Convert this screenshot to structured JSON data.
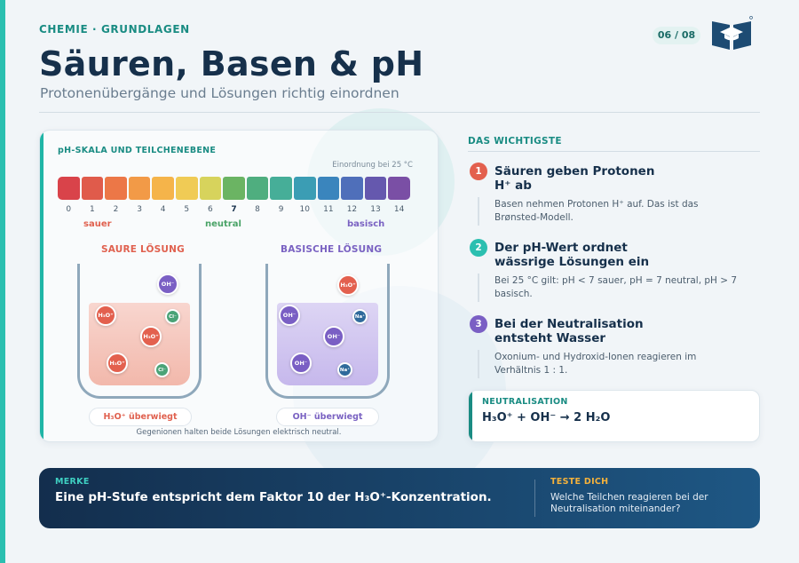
{
  "header": {
    "eyebrow": "CHEMIE · GRUNDLAGEN",
    "page": "06 / 08",
    "title": "Säuren, Basen & pH",
    "subtitle": "Protonenübergänge und Lösungen richtig einordnen",
    "logo_icon": "book-graduation-cap-icon"
  },
  "ph_panel": {
    "title": "pH-SKALA UND TEILCHENEBENE",
    "note": "Einordnung bei 25 °C",
    "scale_colors": [
      "#d9434a",
      "#e05b4b",
      "#ec7747",
      "#f29a47",
      "#f5b44a",
      "#f0cb55",
      "#d7d35c",
      "#6bb463",
      "#4fae7f",
      "#46ae98",
      "#3b9db4",
      "#3a85bd",
      "#4f6fba",
      "#6558ae",
      "#7a4fa5"
    ],
    "numbers": [
      "0",
      "1",
      "2",
      "3",
      "4",
      "5",
      "6",
      "7",
      "8",
      "9",
      "10",
      "11",
      "12",
      "13",
      "14"
    ],
    "label_acid": "sauer",
    "label_neutral": "neutral",
    "label_base": "basisch",
    "acid_title": "SAURE LÖSUNG",
    "base_title": "BASISCHE LÖSUNG",
    "ion_h3o": "H₃O⁺",
    "ion_oh": "OH⁻",
    "ion_cl": "Cl⁻",
    "ion_na": "Na⁺",
    "acid_pill": "H₃O⁺ überwiegt",
    "base_pill": "OH⁻ überwiegt",
    "footnote": "Gegenionen halten beide Lösungen elektrisch neutral."
  },
  "key_points": {
    "heading": "DAS WICHTIGSTE",
    "items": [
      {
        "num": "1",
        "title": "Säuren geben Protonen H⁺ ab",
        "text": "Basen nehmen Protonen H⁺ auf. Das ist das Brønsted-Modell.",
        "color": "#e3604e"
      },
      {
        "num": "2",
        "title": "Der pH-Wert ordnet wässrige Lösungen ein",
        "text": "Bei 25 °C gilt: pH < 7 sauer, pH = 7 neutral, pH > 7 basisch.",
        "color": "#2bbfb0"
      },
      {
        "num": "3",
        "title": "Bei der Neutralisation entsteht Wasser",
        "text": "Oxonium- und Hydroxid-Ionen reagieren im Verhältnis 1 : 1.",
        "color": "#7a5fc4"
      }
    ]
  },
  "neutralisation": {
    "label": "NEUTRALISATION",
    "equation": "H₃O⁺ + OH⁻ → 2 H₂O"
  },
  "banner": {
    "merke_label": "MERKE",
    "merke_text": "Eine pH-Stufe entspricht dem Faktor 10 der H₃O⁺-Konzentration.",
    "test_label": "TESTE DICH",
    "test_text": "Welche Teilchen reagieren bei der Neutralisation miteinander?"
  }
}
